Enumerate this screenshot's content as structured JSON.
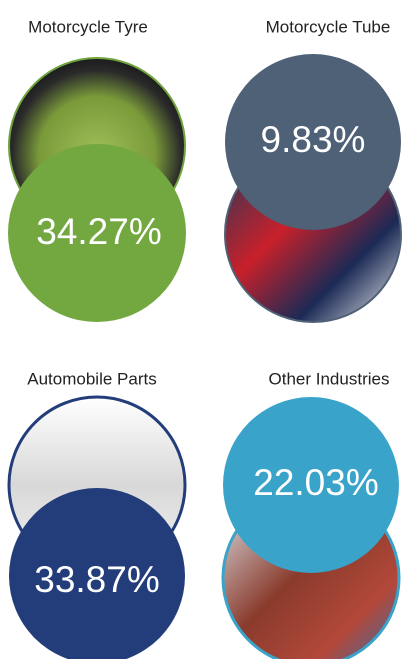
{
  "items": [
    {
      "label": "Motorcycle Tyre",
      "value": "34.27%"
    },
    {
      "label": "Motorcycle Tube",
      "value": "9.83%"
    },
    {
      "label": "Automobile Parts",
      "value": "33.87%"
    },
    {
      "label": "Other Industries",
      "value": "22.03%"
    }
  ]
}
